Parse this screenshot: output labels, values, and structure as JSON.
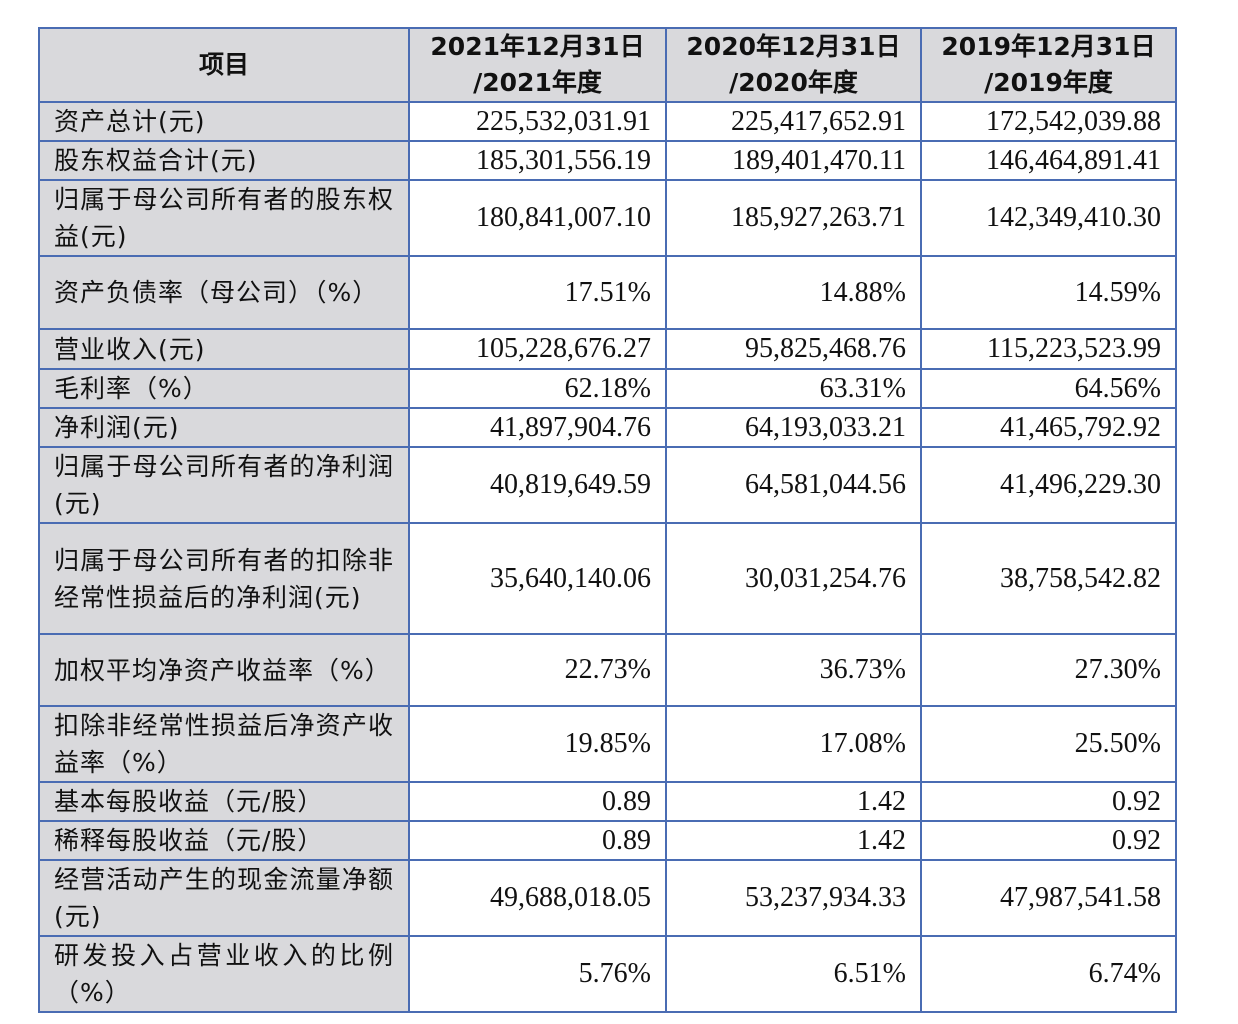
{
  "table": {
    "headers": [
      {
        "line1": "项目",
        "line2": ""
      },
      {
        "line1": "2021年12月31日",
        "line2": "/2021年度"
      },
      {
        "line1": "2020年12月31日",
        "line2": "/2020年度"
      },
      {
        "line1": "2019年12月31日",
        "line2": "/2019年度"
      }
    ],
    "rows": [
      {
        "label": "资产总计(元)",
        "values": [
          "225,532,031.91",
          "225,417,652.91",
          "172,542,039.88"
        ]
      },
      {
        "label": "股东权益合计(元)",
        "values": [
          "185,301,556.19",
          "189,401,470.11",
          "146,464,891.41"
        ]
      },
      {
        "label": "归属于母公司所有者的股东权益(元)",
        "values": [
          "180,841,007.10",
          "185,927,263.71",
          "142,349,410.30"
        ]
      },
      {
        "label": "资产负债率（母公司）（%）",
        "values": [
          "17.51%",
          "14.88%",
          "14.59%"
        ]
      },
      {
        "label": "营业收入(元)",
        "values": [
          "105,228,676.27",
          "95,825,468.76",
          "115,223,523.99"
        ]
      },
      {
        "label": "毛利率（%）",
        "values": [
          "62.18%",
          "63.31%",
          "64.56%"
        ]
      },
      {
        "label": "净利润(元)",
        "values": [
          "41,897,904.76",
          "64,193,033.21",
          "41,465,792.92"
        ]
      },
      {
        "label": "归属于母公司所有者的净利润(元)",
        "values": [
          "40,819,649.59",
          "64,581,044.56",
          "41,496,229.30"
        ]
      },
      {
        "label": "归属于母公司所有者的扣除非经常性损益后的净利润(元)",
        "values": [
          "35,640,140.06",
          "30,031,254.76",
          "38,758,542.82"
        ]
      },
      {
        "label": "加权平均净资产收益率（%）",
        "values": [
          "22.73%",
          "36.73%",
          "27.30%"
        ]
      },
      {
        "label": "扣除非经常性损益后净资产收益率（%）",
        "values": [
          "19.85%",
          "17.08%",
          "25.50%"
        ]
      },
      {
        "label": "基本每股收益（元/股）",
        "values": [
          "0.89",
          "1.42",
          "0.92"
        ]
      },
      {
        "label": "稀释每股收益（元/股）",
        "values": [
          "0.89",
          "1.42",
          "0.92"
        ]
      },
      {
        "label": "经营活动产生的现金流量净额(元)",
        "values": [
          "49,688,018.05",
          "53,237,934.33",
          "47,987,541.58"
        ]
      },
      {
        "label": "研发投入占营业收入的比例（%）",
        "values": [
          "5.76%",
          "6.51%",
          "6.74%"
        ]
      }
    ]
  },
  "colors": {
    "border": "#4a6cb3",
    "label_bg": "#d9d9dc",
    "value_bg": "#ffffff"
  }
}
